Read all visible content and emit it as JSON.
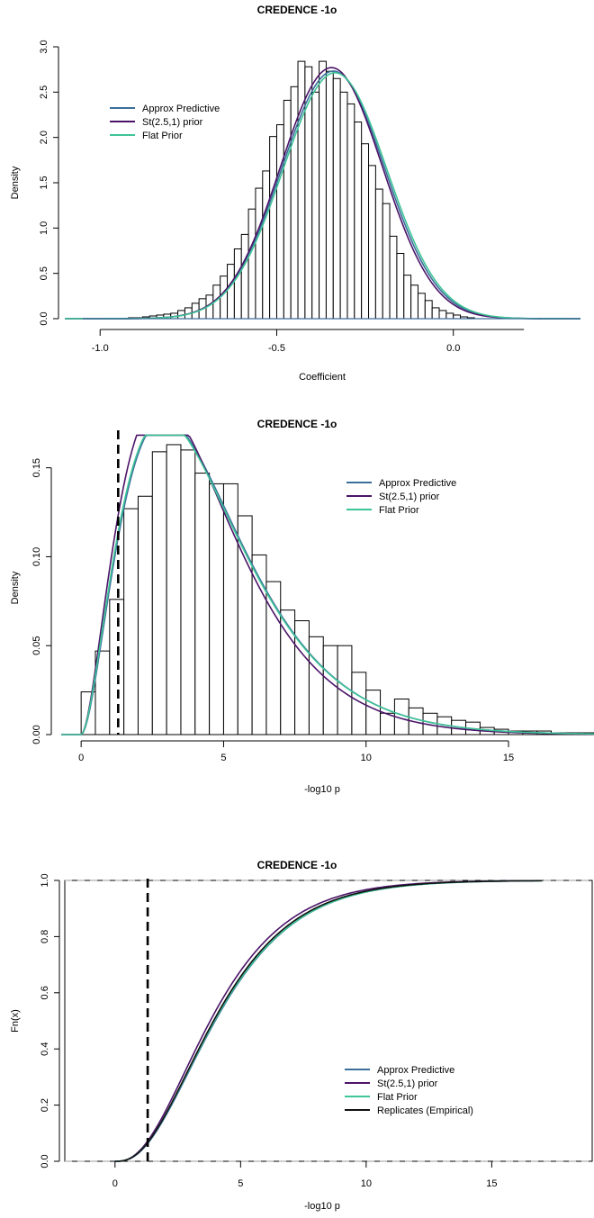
{
  "colors": {
    "approx": "#3b6e9b",
    "student": "#4b1468",
    "flat": "#3ec497",
    "empirical": "#111111",
    "ref_dashed": "#000000",
    "grey_ref": "#b0b0b0"
  },
  "chart_data": [
    {
      "type": "bar",
      "title": "CREDENCE -1o",
      "xlabel": "Coefficient",
      "ylabel": "Density",
      "xlim": [
        -1.1,
        0.36
      ],
      "ylim": [
        0,
        3.0
      ],
      "xticks": [
        -1.0,
        -0.5,
        0.0
      ],
      "xtick_labels": [
        "-1.0",
        "-0.5",
        "0.0"
      ],
      "yticks": [
        0,
        0.5,
        1.0,
        1.5,
        2.0,
        2.5,
        3.0
      ],
      "ytick_labels": [
        "0.0",
        "0.5",
        "1.0",
        "1.5",
        "2.0",
        "2.5",
        "3.0"
      ],
      "legend_position": "top-left",
      "bin_start": -0.92,
      "bin_width": 0.02,
      "values": [
        0.01,
        0.01,
        0.02,
        0.03,
        0.04,
        0.05,
        0.06,
        0.09,
        0.12,
        0.17,
        0.22,
        0.26,
        0.37,
        0.47,
        0.6,
        0.77,
        0.93,
        1.21,
        1.44,
        1.63,
        2.01,
        2.14,
        2.41,
        2.56,
        2.84,
        2.78,
        2.5,
        2.84,
        2.73,
        2.65,
        2.5,
        2.37,
        2.17,
        1.93,
        1.69,
        1.43,
        1.27,
        0.91,
        0.72,
        0.48,
        0.37,
        0.28,
        0.2,
        0.12,
        0.09,
        0.06,
        0.04,
        0.02,
        0.01
      ],
      "series": [
        {
          "name": "Approx Predictive",
          "kind": "normal",
          "mean": -0.34,
          "sd": 0.146,
          "color_key": "approx"
        },
        {
          "name": "St(2.5,1) prior",
          "kind": "normal",
          "mean": -0.345,
          "sd": 0.144,
          "color_key": "student"
        },
        {
          "name": "Flat Prior",
          "kind": "normal",
          "mean": -0.335,
          "sd": 0.147,
          "color_key": "flat"
        }
      ],
      "curve_range": [
        -1.1,
        0.36
      ]
    },
    {
      "type": "bar",
      "title": "CREDENCE -1o",
      "xlabel": "-log10 p",
      "ylabel": "Density",
      "xlim": [
        -0.7,
        18
      ],
      "ylim": [
        0,
        0.165
      ],
      "xticks": [
        0,
        5,
        10,
        15
      ],
      "xtick_labels": [
        "0",
        "5",
        "10",
        "15"
      ],
      "yticks": [
        0,
        0.05,
        0.1,
        0.15
      ],
      "ytick_labels": [
        "0.00",
        "0.05",
        "0.10",
        "0.15"
      ],
      "legend_position": "top-right",
      "reference_line_x": 1.3,
      "bin_start": 0,
      "bin_width": 0.5,
      "values": [
        0.024,
        0.047,
        0.076,
        0.127,
        0.134,
        0.159,
        0.163,
        0.16,
        0.147,
        0.141,
        0.141,
        0.123,
        0.101,
        0.086,
        0.07,
        0.064,
        0.055,
        0.05,
        0.05,
        0.035,
        0.025,
        0.012,
        0.02,
        0.015,
        0.012,
        0.01,
        0.008,
        0.007,
        0.004,
        0.003,
        0.002,
        0.002,
        0.002,
        0.001,
        0.001,
        0.001
      ],
      "series": [
        {
          "name": "Approx Predictive",
          "kind": "gamma",
          "shape": 2.85,
          "scale": 1.58,
          "color_key": "approx"
        },
        {
          "name": "St(2.5,1) prior",
          "kind": "gamma",
          "shape": 2.82,
          "scale": 1.52,
          "color_key": "student"
        },
        {
          "name": "Flat Prior",
          "kind": "gamma",
          "shape": 2.8,
          "scale": 1.6,
          "color_key": "flat"
        }
      ],
      "curve_range": [
        -0.7,
        18
      ]
    },
    {
      "type": "line",
      "title": "CREDENCE -1o",
      "xlabel": "-log10 p",
      "ylabel": "Fn(x)",
      "xlim": [
        -2,
        19
      ],
      "ylim": [
        0,
        1.0
      ],
      "xticks": [
        0,
        5,
        10,
        15
      ],
      "xtick_labels": [
        "0",
        "5",
        "10",
        "15"
      ],
      "yticks": [
        0,
        0.2,
        0.4,
        0.6,
        0.8,
        1.0
      ],
      "ytick_labels": [
        "0.0",
        "0.2",
        "0.4",
        "0.6",
        "0.8",
        "1.0"
      ],
      "legend_position": "center-right",
      "reference_line_x": 1.3,
      "horizontal_refs": [
        0,
        1
      ],
      "series": [
        {
          "name": "Approx Predictive",
          "kind": "gamma_cdf",
          "shape": 2.85,
          "scale": 1.58,
          "color_key": "approx"
        },
        {
          "name": "St(2.5,1) prior",
          "kind": "gamma_cdf",
          "shape": 2.82,
          "scale": 1.52,
          "color_key": "student"
        },
        {
          "name": "Flat Prior",
          "kind": "gamma_cdf",
          "shape": 2.8,
          "scale": 1.6,
          "color_key": "flat"
        },
        {
          "name": "Replicates (Empirical)",
          "kind": "gamma_cdf",
          "shape": 2.84,
          "scale": 1.56,
          "color_key": "empirical"
        }
      ],
      "curve_range": [
        0,
        17
      ]
    }
  ]
}
